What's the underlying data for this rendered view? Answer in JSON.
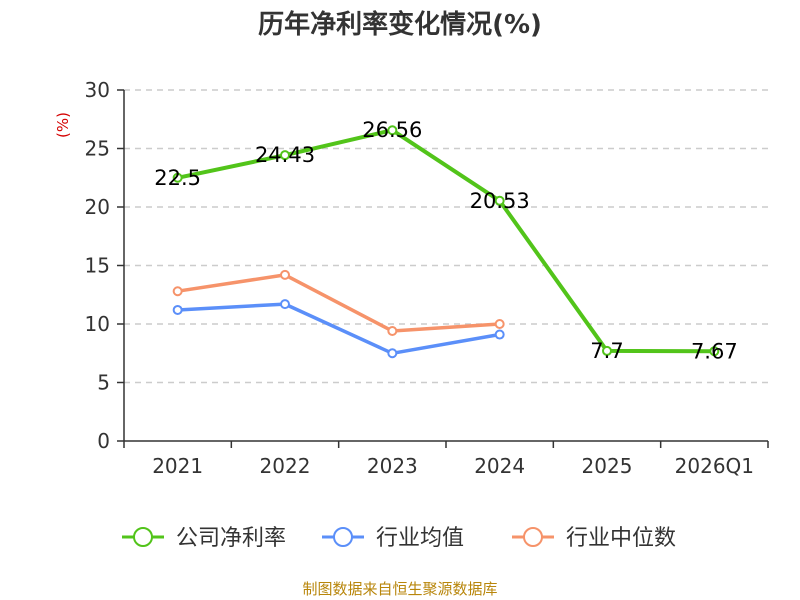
{
  "chart_data": {
    "type": "line",
    "title": "历年净利率变化情况(%)",
    "ylabel": "(%)",
    "ylim": [
      0,
      30
    ],
    "yticks": [
      "0",
      "5",
      "10",
      "15",
      "20",
      "25",
      "30"
    ],
    "categories": [
      "2021",
      "2022",
      "2023",
      "2024",
      "2025",
      "2026Q1"
    ],
    "grid": true,
    "legend_position": "bottom",
    "series": [
      {
        "name": "公司净利率",
        "color": "#52c41a",
        "values": [
          22.5,
          24.43,
          26.56,
          20.53,
          7.7,
          7.67
        ],
        "labels": [
          "22.5",
          "24.43",
          "26.56",
          "20.53",
          "7.7",
          "7.67"
        ]
      },
      {
        "name": "行业均值",
        "color": "#5b8ff9",
        "values": [
          11.2,
          11.7,
          7.5,
          9.1,
          null,
          null
        ]
      },
      {
        "name": "行业中位数",
        "color": "#f6936a",
        "values": [
          12.8,
          14.2,
          9.4,
          10.0,
          null,
          null
        ]
      }
    ]
  },
  "source": "制图数据来自恒生聚源数据库"
}
